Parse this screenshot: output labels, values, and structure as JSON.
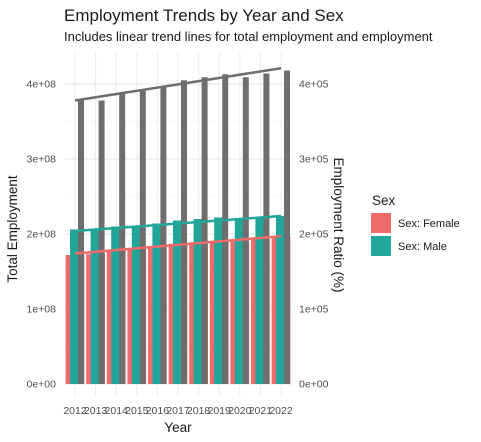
{
  "chart_data": {
    "type": "bar",
    "title": "Employment Trends by Year and Sex",
    "subtitle": "Includes linear trend lines for total employment and employment",
    "xlabel": "Year",
    "ylabel_left": "Total Employment",
    "ylabel_right": "Employment Ratio (%)",
    "categories": [
      "2012",
      "2013",
      "2014",
      "2015",
      "2016",
      "2017",
      "2018",
      "2019",
      "2020",
      "2021",
      "2022"
    ],
    "ylim_left": [
      0,
      420000000
    ],
    "ylim_right": [
      0,
      420000
    ],
    "yticks_left": [
      "0e+00",
      "1e+08",
      "2e+08",
      "3e+08",
      "4e+08"
    ],
    "yticks_right": [
      "0e+00",
      "1e+05",
      "2e+05",
      "3e+05",
      "4e+05"
    ],
    "yticks_values": [
      0,
      100000000,
      200000000,
      300000000,
      400000000
    ],
    "series": [
      {
        "name": "Sex: Female",
        "color": "#ee6b6b",
        "values": [
          172000000,
          173000000,
          178000000,
          180000000,
          183000000,
          187000000,
          189000000,
          191000000,
          190000000,
          193000000,
          196000000
        ]
      },
      {
        "name": "Sex: Male",
        "color": "#22a69a",
        "values": [
          206000000,
          205000000,
          210000000,
          211000000,
          214000000,
          218000000,
          220000000,
          222000000,
          219000000,
          221000000,
          224000000
        ]
      },
      {
        "name": "Total",
        "color": "#6e6e6e",
        "values": [
          378000000,
          378000000,
          388000000,
          391000000,
          397000000,
          405000000,
          409000000,
          413000000,
          409000000,
          414000000,
          418000000
        ]
      }
    ],
    "trend_lines": [
      {
        "series": "Total",
        "color": "#6e6e6e",
        "start": 378000000,
        "end": 421000000
      },
      {
        "series": "Sex: Male",
        "color": "#22a69a",
        "start": 204000000,
        "end": 224000000
      },
      {
        "series": "Sex: Female",
        "color": "#ee6b6b",
        "start": 174000000,
        "end": 197000000
      }
    ],
    "legend": {
      "title": "Sex",
      "position": "right",
      "items": [
        "Sex: Female",
        "Sex: Male"
      ]
    },
    "grid": true
  }
}
